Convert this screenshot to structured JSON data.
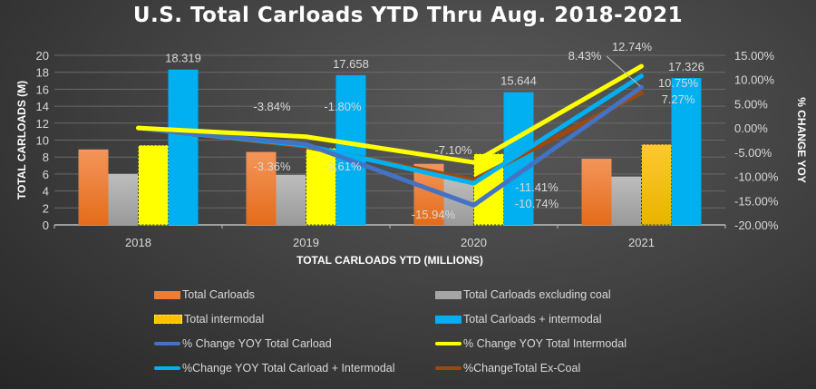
{
  "chart_data": {
    "type": "bar",
    "title": "U.S. Total Carloads YTD Thru Aug. 2018-2021",
    "xlabel": "TOTAL CARLOADS YTD (MILLIONS)",
    "ylabel": "TOTAL CARLOADS (M)",
    "y2label": "% CHANGE YOY",
    "categories": [
      "2018",
      "2019",
      "2020",
      "2021"
    ],
    "ylim": [
      0,
      20
    ],
    "yticks": [
      "0",
      "2",
      "4",
      "6",
      "8",
      "10",
      "12",
      "14",
      "16",
      "18",
      "20"
    ],
    "y2lim": [
      -20,
      15
    ],
    "y2ticks": [
      "-20.00%",
      "-15.00%",
      "-10.00%",
      "-5.00%",
      "0.00%",
      "5.00%",
      "10.00%",
      "15.00%"
    ],
    "grid": true,
    "legend": "bottom",
    "bar_series": [
      {
        "name": "Total Carloads",
        "values": [
          8.9,
          8.6,
          7.2,
          7.8
        ],
        "color": "#ED7D31"
      },
      {
        "name": "Total Carloads excluding coal",
        "values": [
          6.0,
          5.9,
          5.4,
          5.7
        ],
        "color": "#A5A5A5"
      },
      {
        "name": "Total intermodal",
        "values": [
          9.4,
          9.05,
          8.4,
          9.5
        ],
        "color": "#FFFF00",
        "color_2021": "#FFC000"
      },
      {
        "name": "Total Carloads + intermodal",
        "values": [
          18.319,
          17.658,
          15.644,
          17.326
        ],
        "labels": [
          "18.319",
          "17.658",
          "15.644",
          "17.326"
        ],
        "color": "#00B0F0"
      }
    ],
    "line_series": [
      {
        "name": "% Change YOY Total Carload",
        "values": [
          0,
          -3.36,
          -15.94,
          8.43
        ],
        "labels": [
          "",
          "-3.36%",
          "-15.94%",
          "8.43%"
        ],
        "color": "#4472C4"
      },
      {
        "name": "% Change YOY Total Intermodal",
        "values": [
          0,
          -1.8,
          -7.1,
          12.74
        ],
        "labels": [
          "",
          "-1.80%",
          "-7.10%",
          "12.74%"
        ],
        "color": "#FFFF00"
      },
      {
        "name": "%Change YOY Total Carload + Intermodal",
        "values": [
          0,
          -3.61,
          -11.41,
          10.75
        ],
        "labels": [
          "",
          "-3.61%",
          "-11.41%",
          "10.75%"
        ],
        "color": "#00B0F0"
      },
      {
        "name": "%ChangeTotal Ex-Coal",
        "values": [
          0,
          -3.84,
          -10.74,
          7.27
        ],
        "labels": [
          "",
          "-3.84%",
          "-10.74%",
          "7.27%"
        ],
        "color": "#9E480E"
      }
    ]
  }
}
